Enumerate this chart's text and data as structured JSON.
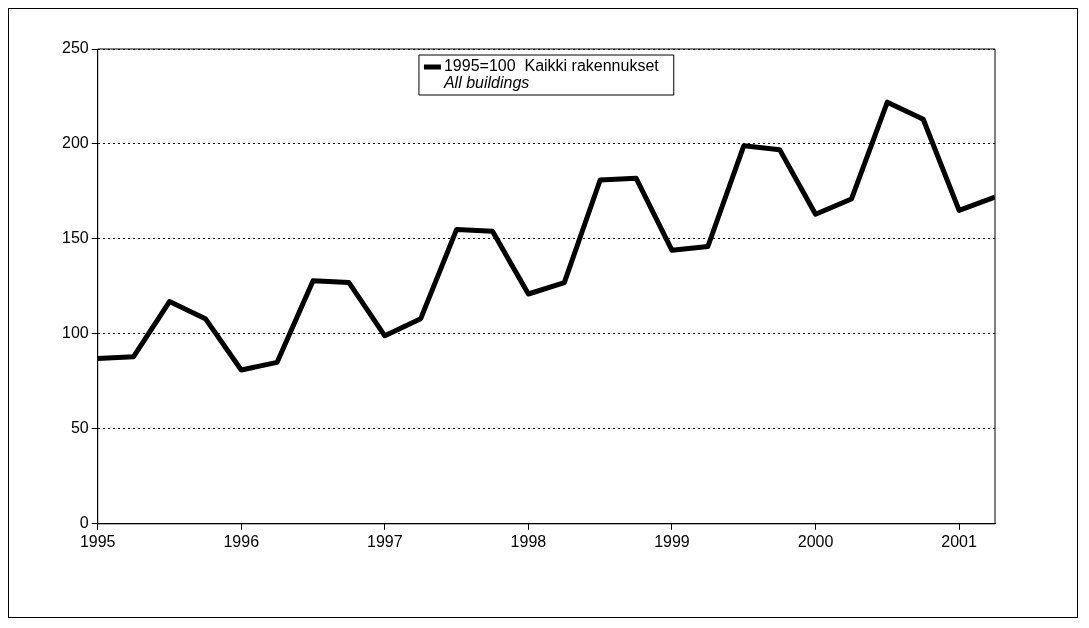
{
  "chart_data": {
    "type": "line",
    "x": [
      1995,
      1995.25,
      1995.5,
      1995.75,
      1996,
      1996.25,
      1996.5,
      1996.75,
      1997,
      1997.25,
      1997.5,
      1997.75,
      1998,
      1998.25,
      1998.5,
      1998.75,
      1999,
      1999.25,
      1999.5,
      1999.75,
      2000,
      2000.25,
      2000.5,
      2000.75,
      2001,
      2001.25
    ],
    "series": [
      {
        "name": "1995=100  Kaikki rakennukset\nAll buildings",
        "color": "#000000",
        "values": [
          87,
          88,
          117,
          108,
          81,
          85,
          128,
          127,
          99,
          108,
          155,
          154,
          121,
          127,
          181,
          182,
          144,
          146,
          199,
          197,
          163,
          171,
          222,
          213,
          165,
          172
        ]
      }
    ],
    "xlim": [
      1995,
      2001.25
    ],
    "xticks": [
      1995,
      1996,
      1997,
      1998,
      1999,
      2000,
      2001
    ],
    "ylim": [
      0,
      250
    ],
    "yticks": [
      0,
      50,
      100,
      150,
      200,
      250
    ],
    "grid": "y",
    "legend": "top",
    "marker": "none",
    "line_style": "solid"
  }
}
